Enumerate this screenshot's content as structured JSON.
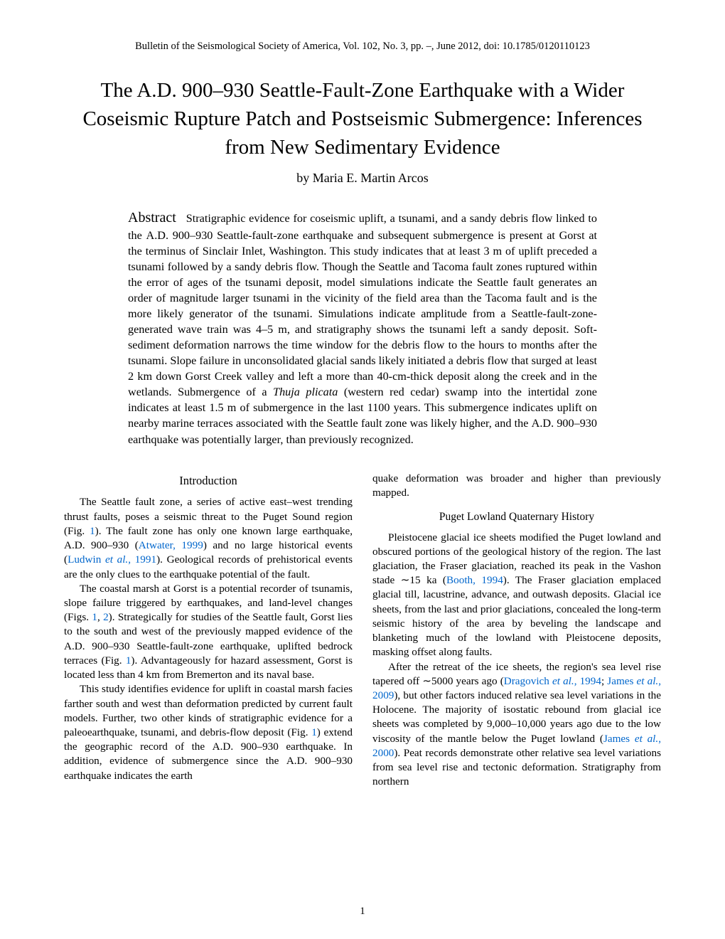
{
  "header": "Bulletin of the Seismological Society of America, Vol. 102, No. 3, pp. –, June 2012, doi: 10.1785/0120110123",
  "title": "The A.D. 900–930 Seattle-Fault-Zone Earthquake with a Wider Coseismic Rupture Patch and Postseismic Submergence: Inferences from New Sedimentary Evidence",
  "author": "by Maria E. Martin Arcos",
  "abstract_label": "Abstract",
  "abstract_body_1": "Stratigraphic evidence for coseismic uplift, a tsunami, and a sandy debris flow linked to the ",
  "abstract_ad1": "A.D.",
  "abstract_body_2": " 900–930 Seattle-fault-zone earthquake and subsequent submergence is present at Gorst at the terminus of Sinclair Inlet, Washington. This study indicates that at least 3 m of uplift preceded a tsunami followed by a sandy debris flow. Though the Seattle and Tacoma fault zones ruptured within the error of ages of the tsunami deposit, model simulations indicate the Seattle fault generates an order of magnitude larger tsunami in the vicinity of the field area than the Tacoma fault and is the more likely generator of the tsunami. Simulations indicate amplitude from a Seattle-fault-zone-generated wave train was 4–5 m, and stratigraphy shows the tsunami left a sandy deposit. Soft-sediment deformation narrows the time window for the debris flow to the hours to months after the tsunami. Slope failure in unconsolidated glacial sands likely initiated a debris flow that surged at least 2 km down Gorst Creek valley and left a more than 40-cm-thick deposit along the creek and in the wetlands. Submergence of a ",
  "abstract_italic": "Thuja plicata",
  "abstract_body_3": " (western red cedar) swamp into the intertidal zone indicates at least 1.5 m of submergence in the last 1100 years. This submergence indicates uplift on nearby marine terraces associated with the Seattle fault zone was likely higher, and the ",
  "abstract_ad2": "A.D.",
  "abstract_body_4": " 900–930 earthquake was potentially larger, than previously recognized.",
  "intro_heading": "Introduction",
  "left_p1a": "The Seattle fault zone, a series of active east–west trending thrust faults, poses a seismic threat to the Puget Sound region (Fig. ",
  "fig1": "1",
  "left_p1b": "). The fault zone has only one known large earthquake, ",
  "ad": "A.D.",
  "left_p1c": " 900–930 (",
  "atwater": "Atwater, 1999",
  "left_p1d": ") and no large historical events (",
  "ludwin": "Ludwin ",
  "etal": "et al.",
  "ludwin_year": ", 1991",
  "left_p1e": "). Geological records of prehistorical events are the only clues to the earthquake potential of the fault.",
  "left_p2a": "The coastal marsh at Gorst is a potential recorder of tsunamis, slope failure triggered by earthquakes, and land-level changes (Figs. ",
  "fig2": "2",
  "left_p2b": "). Strategically for studies of the Seattle fault, Gorst lies to the south and west of the previously mapped evidence of the ",
  "left_p2c": " 900–930 Seattle-fault-zone earthquake, uplifted bedrock terraces (Fig. ",
  "left_p2d": "). Advantageously for hazard assessment, Gorst is located less than 4 km from Bremerton and its naval base.",
  "left_p3a": "This study identifies evidence for uplift in coastal marsh facies farther south and west than deformation predicted by current fault models. Further, two other kinds of stratigraphic evidence for a paleoearthquake, tsunami, and debris-flow deposit (Fig. ",
  "left_p3b": ") extend the geographic record of the ",
  "left_p3c": " 900–930 earthquake. In addition, evidence of submergence since the ",
  "left_p3d": " 900–930 earthquake indicates the earth",
  "right_p1": "quake deformation was broader and higher than previously mapped.",
  "sub_heading": "Puget Lowland Quaternary History",
  "right_p2a": "Pleistocene glacial ice sheets modified the Puget lowland and obscured portions of the geological history of the region. The last glaciation, the Fraser glaciation, reached its peak in the Vashon stade ∼15 ka (",
  "booth": "Booth, 1994",
  "right_p2b": "). The Fraser glaciation emplaced glacial till, lacustrine, advance, and outwash deposits. Glacial ice sheets, from the last and prior glaciations, concealed the long-term seismic history of the area by beveling the landscape and blanketing much of the lowland with Pleistocene deposits, masking offset along faults.",
  "right_p3a": "After the retreat of the ice sheets, the region's sea level rise tapered off ∼5000 years ago (",
  "dragovich": "Dragovich ",
  "dragovich_year": ", 1994",
  "semicolon": "; ",
  "james09": "James ",
  "james09_year": ", 2009",
  "right_p3b": "), but other factors induced relative sea level variations in the Holocene. The majority of isostatic rebound from glacial ice sheets was completed by 9,000–10,000 years ago due to the low viscosity of the mantle below the Puget lowland (",
  "james00": "James ",
  "james00_year": ", 2000",
  "right_p3c": "). Peat records demonstrate other relative sea level variations from sea level rise and tectonic deformation. Stratigraphy from northern",
  "comma_space": ", ",
  "page_number": "1",
  "link_color": "#0066cc"
}
